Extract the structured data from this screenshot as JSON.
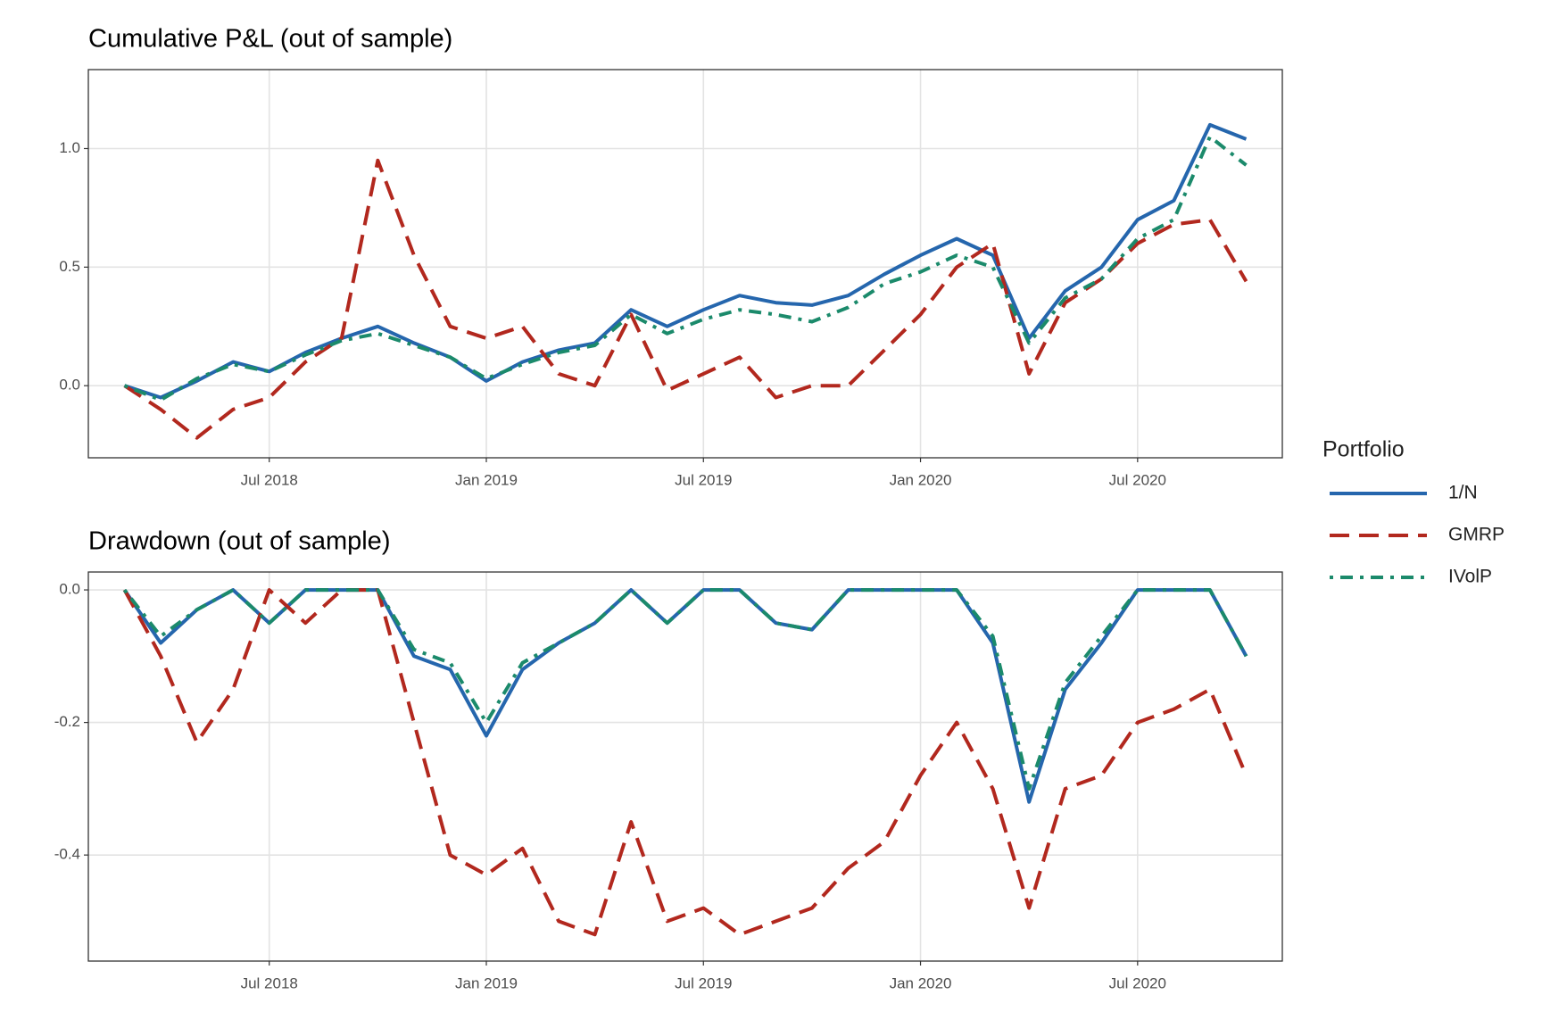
{
  "chart_data": [
    {
      "type": "line",
      "title": "Cumulative P&L (out of sample)",
      "legend_title": "Portfolio",
      "legend": "right",
      "grid": true,
      "x": [
        "2018-03",
        "2018-04",
        "2018-05",
        "2018-06",
        "2018-07",
        "2018-08",
        "2018-09",
        "2018-10",
        "2018-11",
        "2018-12",
        "2019-01",
        "2019-02",
        "2019-03",
        "2019-04",
        "2019-05",
        "2019-06",
        "2019-07",
        "2019-08",
        "2019-09",
        "2019-10",
        "2019-11",
        "2019-12",
        "2020-01",
        "2020-02",
        "2020-03",
        "2020-04",
        "2020-05",
        "2020-06",
        "2020-07",
        "2020-08",
        "2020-09",
        "2020-10"
      ],
      "xlim": [
        "2018-02",
        "2020-11"
      ],
      "xticks": [
        {
          "value": "2018-07",
          "label": "Jul 2018"
        },
        {
          "value": "2019-01",
          "label": "Jan 2019"
        },
        {
          "value": "2019-07",
          "label": "Jul 2019"
        },
        {
          "value": "2020-01",
          "label": "Jan 2020"
        },
        {
          "value": "2020-07",
          "label": "Jul 2020"
        }
      ],
      "ylim": [
        -0.304,
        1.333
      ],
      "yticks": [
        {
          "value": 0,
          "label": "0.0"
        },
        0.5,
        {
          "value": 1,
          "label": "1.0"
        }
      ],
      "series": [
        {
          "name": "1/N",
          "color": "#2566ad",
          "linetype": "solid",
          "values": [
            0,
            -0.05,
            0.02,
            0.1,
            0.06,
            0.14,
            0.2,
            0.25,
            0.18,
            0.12,
            0.02,
            0.1,
            0.15,
            0.18,
            0.32,
            0.25,
            0.32,
            0.38,
            0.35,
            0.34,
            0.38,
            0.47,
            0.55,
            0.62,
            0.55,
            0.2,
            0.4,
            0.5,
            0.7,
            0.78,
            1.1,
            1.04
          ]
        },
        {
          "name": "GMRP",
          "color": "#b2281e",
          "linetype": "dashed",
          "values": [
            0,
            -0.1,
            -0.22,
            -0.1,
            -0.05,
            0.1,
            0.2,
            0.95,
            0.55,
            0.25,
            0.2,
            0.25,
            0.05,
            0,
            0.3,
            -0.02,
            0.05,
            0.12,
            -0.05,
            0,
            0,
            0.15,
            0.3,
            0.5,
            0.6,
            0.05,
            0.35,
            0.45,
            0.6,
            0.68,
            0.7,
            0.44
          ]
        },
        {
          "name": "IVolP",
          "color": "#1b8a6b",
          "linetype": "dotdash",
          "values": [
            0,
            -0.06,
            0.03,
            0.09,
            0.06,
            0.13,
            0.19,
            0.22,
            0.17,
            0.12,
            0.03,
            0.09,
            0.14,
            0.17,
            0.3,
            0.22,
            0.28,
            0.32,
            0.3,
            0.27,
            0.33,
            0.43,
            0.48,
            0.55,
            0.5,
            0.18,
            0.37,
            0.45,
            0.62,
            0.7,
            1.05,
            0.93
          ]
        }
      ]
    },
    {
      "type": "line",
      "title": "Drawdown (out of sample)",
      "grid": true,
      "x": [
        "2018-03",
        "2018-04",
        "2018-05",
        "2018-06",
        "2018-07",
        "2018-08",
        "2018-09",
        "2018-10",
        "2018-11",
        "2018-12",
        "2019-01",
        "2019-02",
        "2019-03",
        "2019-04",
        "2019-05",
        "2019-06",
        "2019-07",
        "2019-08",
        "2019-09",
        "2019-10",
        "2019-11",
        "2019-12",
        "2020-01",
        "2020-02",
        "2020-03",
        "2020-04",
        "2020-05",
        "2020-06",
        "2020-07",
        "2020-08",
        "2020-09",
        "2020-10"
      ],
      "xlim": [
        "2018-02",
        "2020-11"
      ],
      "xticks": [
        {
          "value": "2018-07",
          "label": "Jul 2018"
        },
        {
          "value": "2019-01",
          "label": "Jan 2019"
        },
        {
          "value": "2019-07",
          "label": "Jul 2019"
        },
        {
          "value": "2020-01",
          "label": "Jan 2020"
        },
        {
          "value": "2020-07",
          "label": "Jul 2020"
        }
      ],
      "ylim": [
        -0.56,
        0.027
      ],
      "yticks": [
        -0.4,
        -0.2,
        {
          "value": 0,
          "label": "0.0"
        }
      ],
      "series": [
        {
          "name": "1/N",
          "color": "#2566ad",
          "linetype": "solid",
          "values": [
            0,
            -0.08,
            -0.03,
            0,
            -0.05,
            0,
            0,
            0,
            -0.1,
            -0.12,
            -0.22,
            -0.12,
            -0.08,
            -0.05,
            0,
            -0.05,
            0,
            0,
            -0.05,
            -0.06,
            0,
            0,
            0,
            0,
            -0.08,
            -0.32,
            -0.15,
            -0.08,
            0,
            0,
            0,
            -0.1
          ]
        },
        {
          "name": "GMRP",
          "color": "#b2281e",
          "linetype": "dashed",
          "values": [
            0,
            -0.1,
            -0.23,
            -0.15,
            0,
            -0.05,
            0,
            0,
            -0.2,
            -0.4,
            -0.43,
            -0.39,
            -0.5,
            -0.52,
            -0.35,
            -0.5,
            -0.48,
            -0.52,
            -0.5,
            -0.48,
            -0.42,
            -0.38,
            -0.28,
            -0.2,
            -0.3,
            -0.48,
            -0.3,
            -0.28,
            -0.2,
            -0.18,
            -0.15,
            -0.28
          ]
        },
        {
          "name": "IVolP",
          "color": "#1b8a6b",
          "linetype": "dotdash",
          "values": [
            0,
            -0.07,
            -0.03,
            0,
            -0.05,
            0,
            0,
            0,
            -0.09,
            -0.11,
            -0.2,
            -0.11,
            -0.08,
            -0.05,
            0,
            -0.05,
            0,
            0,
            -0.05,
            -0.06,
            0,
            0,
            0,
            0,
            -0.07,
            -0.3,
            -0.14,
            -0.07,
            0,
            0,
            0,
            -0.1
          ]
        }
      ]
    }
  ]
}
